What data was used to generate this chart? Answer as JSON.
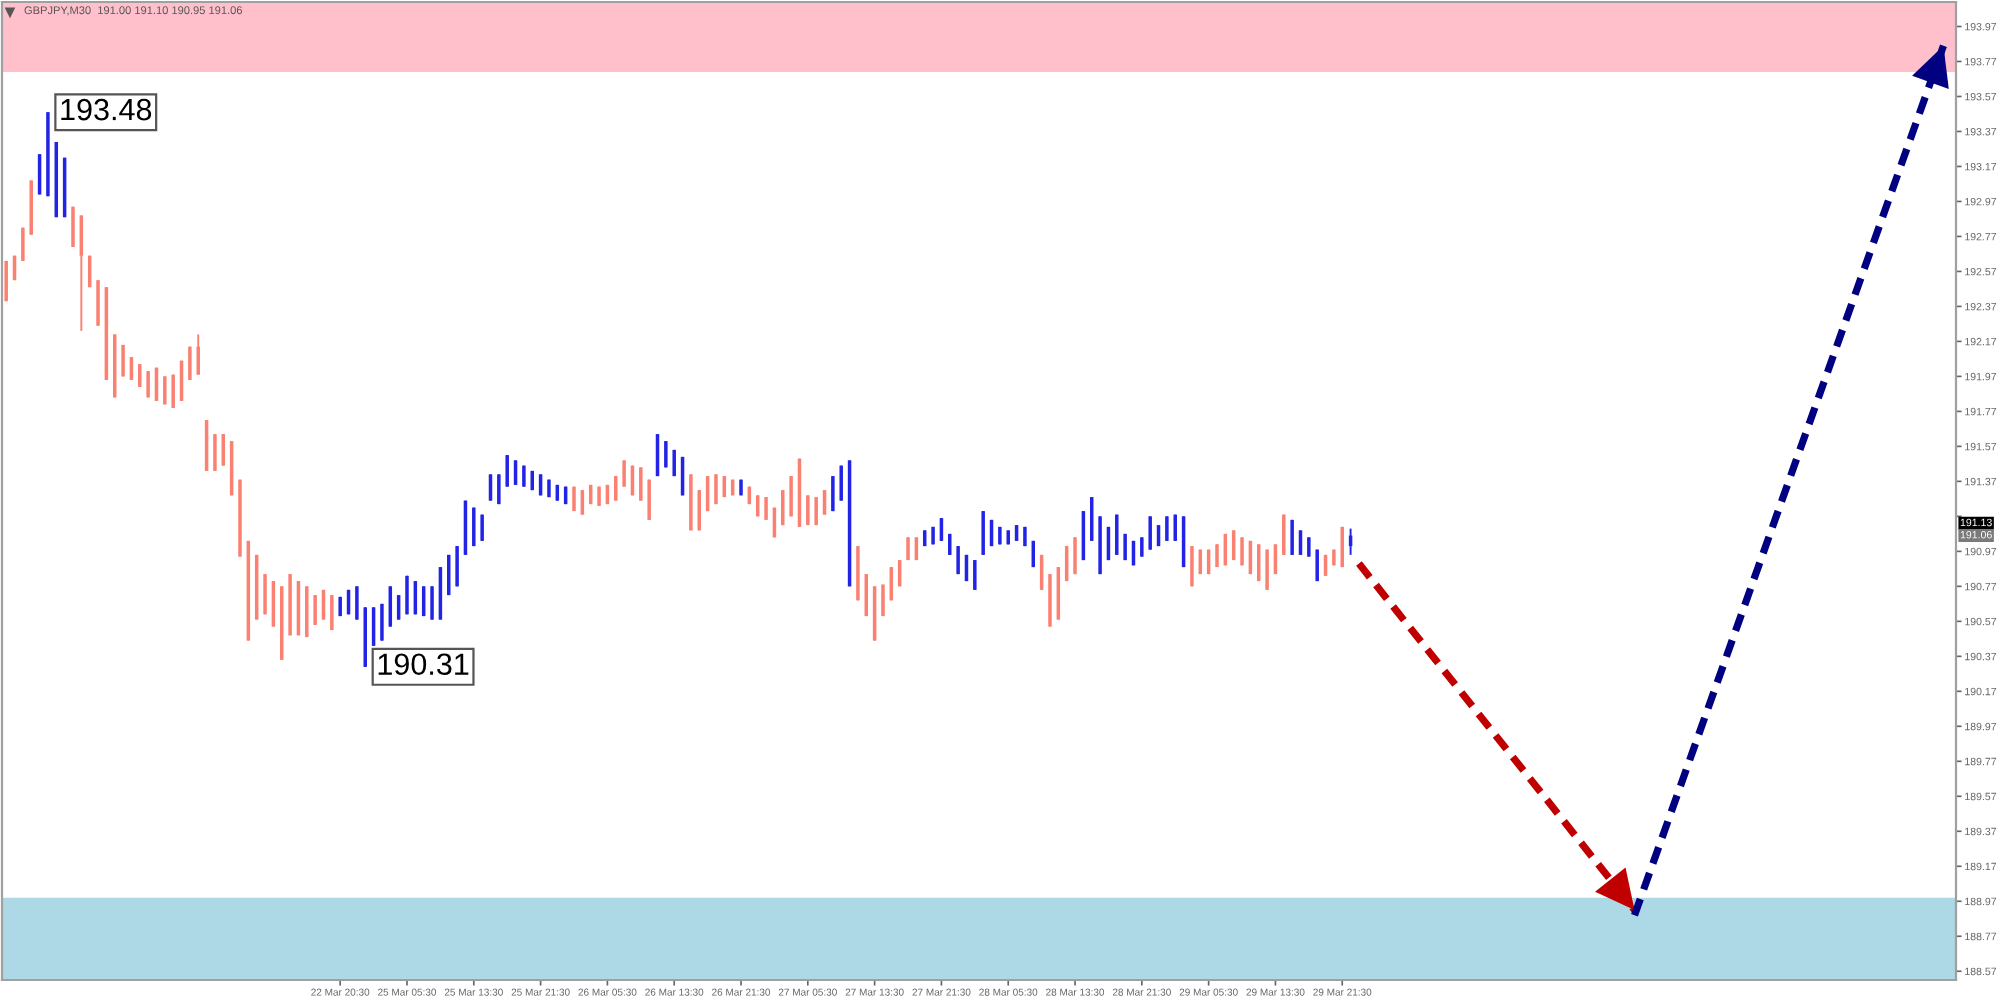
{
  "chart_data": {
    "type": "candlestick",
    "title": "GBPJPY,M30  191.00 191.10 190.95 191.06",
    "categories": [
      null,
      null,
      null,
      null,
      null,
      null,
      null,
      null,
      null,
      null,
      null,
      null,
      null,
      null,
      null,
      null,
      null,
      null,
      null,
      null,
      null,
      null,
      null,
      null,
      null,
      null,
      null,
      null,
      null,
      null,
      null,
      null,
      null,
      null,
      null,
      null,
      null,
      null,
      null,
      null,
      "22 Mar 20:30",
      null,
      null,
      null,
      null,
      null,
      null,
      null,
      "25 Mar 05:30",
      null,
      null,
      null,
      null,
      null,
      null,
      null,
      "25 Mar 13:30",
      null,
      null,
      null,
      null,
      null,
      null,
      null,
      "25 Mar 21:30",
      null,
      null,
      null,
      null,
      null,
      null,
      null,
      "26 Mar 05:30",
      null,
      null,
      null,
      null,
      null,
      null,
      null,
      "26 Mar 13:30",
      null,
      null,
      null,
      null,
      null,
      null,
      null,
      "26 Mar 21:30",
      null,
      null,
      null,
      null,
      null,
      null,
      null,
      "27 Mar 05:30",
      null,
      null,
      null,
      null,
      null,
      null,
      null,
      "27 Mar 13:30",
      null,
      null,
      null,
      null,
      null,
      null,
      null,
      "27 Mar 21:30",
      null,
      null,
      null,
      null,
      null,
      null,
      null,
      "28 Mar 05:30",
      null,
      null,
      null,
      null,
      null,
      null,
      null,
      "28 Mar 13:30",
      null,
      null,
      null,
      null,
      null,
      null,
      null,
      "28 Mar 21:30",
      null,
      null,
      null,
      null,
      null,
      null,
      null,
      "29 Mar 05:30",
      null,
      null,
      null,
      null,
      null,
      null,
      null,
      "29 Mar 13:30",
      null,
      null,
      null,
      null,
      null,
      null,
      null,
      "29 Mar 21:30",
      null,
      null,
      null,
      null,
      null,
      null,
      null,
      null,
      null,
      null,
      null,
      null,
      null,
      null,
      null,
      null,
      null,
      null,
      null,
      null,
      null,
      null,
      null,
      null,
      null,
      null,
      null,
      null,
      null,
      null,
      null,
      null,
      null,
      null,
      null,
      null,
      null,
      null,
      null,
      null,
      null,
      null,
      null,
      null,
      null,
      null,
      null,
      null,
      null,
      null,
      null,
      null,
      null,
      null,
      null,
      null,
      null,
      null,
      null,
      null,
      null,
      null,
      null,
      null,
      null,
      null,
      null,
      null,
      null,
      null,
      null,
      null,
      null
    ],
    "ohlc": [
      [
        192.63,
        192.63,
        192.4,
        192.4
      ],
      [
        192.66,
        192.66,
        192.52,
        192.52
      ],
      [
        192.82,
        192.82,
        192.63,
        192.63
      ],
      [
        193.09,
        193.09,
        192.78,
        192.78
      ],
      [
        193.01,
        193.24,
        193.01,
        193.24
      ],
      [
        193.0,
        193.48,
        193.0,
        193.48
      ],
      [
        192.88,
        193.31,
        192.88,
        193.31
      ],
      [
        192.88,
        193.22,
        192.88,
        193.22
      ],
      [
        192.94,
        192.94,
        192.71,
        192.71
      ],
      [
        192.89,
        192.89,
        192.23,
        192.66
      ],
      [
        192.66,
        192.66,
        192.48,
        192.48
      ],
      [
        192.52,
        192.52,
        192.26,
        192.26
      ],
      [
        192.48,
        192.48,
        191.95,
        191.95
      ],
      [
        192.21,
        192.21,
        191.85,
        191.85
      ],
      [
        192.15,
        192.15,
        191.97,
        191.97
      ],
      [
        192.08,
        192.08,
        191.95,
        191.95
      ],
      [
        192.04,
        192.04,
        191.91,
        191.91
      ],
      [
        192.0,
        192.0,
        191.85,
        191.85
      ],
      [
        192.02,
        192.02,
        191.83,
        191.83
      ],
      [
        191.97,
        191.97,
        191.81,
        191.81
      ],
      [
        191.98,
        191.98,
        191.79,
        191.79
      ],
      [
        192.06,
        192.06,
        191.83,
        191.83
      ],
      [
        192.14,
        192.14,
        191.95,
        191.95
      ],
      [
        192.14,
        192.21,
        191.98,
        191.98
      ],
      [
        191.72,
        191.72,
        191.43,
        191.43
      ],
      [
        191.64,
        191.64,
        191.43,
        191.43
      ],
      [
        191.64,
        191.64,
        191.46,
        191.46
      ],
      [
        191.6,
        191.6,
        191.29,
        191.29
      ],
      [
        191.38,
        191.38,
        190.94,
        190.94
      ],
      [
        191.03,
        191.03,
        190.46,
        190.46
      ],
      [
        190.95,
        190.95,
        190.58,
        190.58
      ],
      [
        190.84,
        190.84,
        190.61,
        190.61
      ],
      [
        190.8,
        190.8,
        190.54,
        190.54
      ],
      [
        190.77,
        190.77,
        190.35,
        190.35
      ],
      [
        190.84,
        190.84,
        190.49,
        190.49
      ],
      [
        190.8,
        190.8,
        190.49,
        190.49
      ],
      [
        190.77,
        190.77,
        190.48,
        190.48
      ],
      [
        190.72,
        190.72,
        190.55,
        190.55
      ],
      [
        190.75,
        190.75,
        190.58,
        190.58
      ],
      [
        190.72,
        190.72,
        190.52,
        190.52
      ],
      [
        190.6,
        190.71,
        190.6,
        190.71
      ],
      [
        190.61,
        190.75,
        190.61,
        190.75
      ],
      [
        190.58,
        190.77,
        190.58,
        190.77
      ],
      [
        190.31,
        190.65,
        190.31,
        190.65
      ],
      [
        190.43,
        190.65,
        190.43,
        190.65
      ],
      [
        190.46,
        190.67,
        190.46,
        190.67
      ],
      [
        190.54,
        190.77,
        190.54,
        190.77
      ],
      [
        190.58,
        190.72,
        190.58,
        190.72
      ],
      [
        190.61,
        190.83,
        190.61,
        190.83
      ],
      [
        190.61,
        190.8,
        190.61,
        190.8
      ],
      [
        190.6,
        190.77,
        190.6,
        190.77
      ],
      [
        190.58,
        190.77,
        190.58,
        190.77
      ],
      [
        190.58,
        190.88,
        190.58,
        190.88
      ],
      [
        190.72,
        190.95,
        190.72,
        190.95
      ],
      [
        190.77,
        191.0,
        190.77,
        191.0
      ],
      [
        190.95,
        191.26,
        190.95,
        191.26
      ],
      [
        191.0,
        191.22,
        191.0,
        191.22
      ],
      [
        191.03,
        191.18,
        191.03,
        191.18
      ],
      [
        191.26,
        191.41,
        191.26,
        191.41
      ],
      [
        191.24,
        191.41,
        191.24,
        191.41
      ],
      [
        191.34,
        191.52,
        191.34,
        191.52
      ],
      [
        191.35,
        191.49,
        191.35,
        191.49
      ],
      [
        191.34,
        191.46,
        191.34,
        191.46
      ],
      [
        191.32,
        191.43,
        191.32,
        191.43
      ],
      [
        191.29,
        191.41,
        191.29,
        191.41
      ],
      [
        191.28,
        191.38,
        191.28,
        191.38
      ],
      [
        191.26,
        191.35,
        191.26,
        191.35
      ],
      [
        191.24,
        191.34,
        191.24,
        191.34
      ],
      [
        191.34,
        191.34,
        191.2,
        191.2
      ],
      [
        191.32,
        191.32,
        191.18,
        191.18
      ],
      [
        191.35,
        191.35,
        191.24,
        191.24
      ],
      [
        191.34,
        191.34,
        191.23,
        191.23
      ],
      [
        191.35,
        191.35,
        191.24,
        191.24
      ],
      [
        191.4,
        191.4,
        191.26,
        191.26
      ],
      [
        191.49,
        191.49,
        191.34,
        191.34
      ],
      [
        191.46,
        191.46,
        191.29,
        191.29
      ],
      [
        191.45,
        191.45,
        191.26,
        191.26
      ],
      [
        191.38,
        191.38,
        191.15,
        191.15
      ],
      [
        191.4,
        191.64,
        191.4,
        191.64
      ],
      [
        191.45,
        191.6,
        191.45,
        191.6
      ],
      [
        191.4,
        191.55,
        191.4,
        191.55
      ],
      [
        191.29,
        191.51,
        191.29,
        191.51
      ],
      [
        191.41,
        191.41,
        191.09,
        191.09
      ],
      [
        191.32,
        191.32,
        191.09,
        191.09
      ],
      [
        191.4,
        191.4,
        191.2,
        191.2
      ],
      [
        191.41,
        191.41,
        191.24,
        191.24
      ],
      [
        191.4,
        191.4,
        191.28,
        191.28
      ],
      [
        191.38,
        191.38,
        191.29,
        191.29
      ],
      [
        191.29,
        191.38,
        191.29,
        191.38
      ],
      [
        191.34,
        191.34,
        191.24,
        191.24
      ],
      [
        191.29,
        191.29,
        191.17,
        191.17
      ],
      [
        191.28,
        191.28,
        191.15,
        191.15
      ],
      [
        191.22,
        191.22,
        191.05,
        191.05
      ],
      [
        191.32,
        191.32,
        191.12,
        191.12
      ],
      [
        191.4,
        191.4,
        191.17,
        191.17
      ],
      [
        191.5,
        191.5,
        191.11,
        191.11
      ],
      [
        191.29,
        191.29,
        191.12,
        191.12
      ],
      [
        191.28,
        191.28,
        191.12,
        191.12
      ],
      [
        191.32,
        191.32,
        191.18,
        191.18
      ],
      [
        191.2,
        191.4,
        191.2,
        191.4
      ],
      [
        191.26,
        191.46,
        191.26,
        191.46
      ],
      [
        190.77,
        191.49,
        190.77,
        191.49
      ],
      [
        191.0,
        191.0,
        190.69,
        190.69
      ],
      [
        190.84,
        190.84,
        190.6,
        190.6
      ],
      [
        190.77,
        190.77,
        190.46,
        190.46
      ],
      [
        190.78,
        190.78,
        190.6,
        190.6
      ],
      [
        190.88,
        190.88,
        190.69,
        190.69
      ],
      [
        190.92,
        190.92,
        190.77,
        190.77
      ],
      [
        191.05,
        191.05,
        190.92,
        190.92
      ],
      [
        191.05,
        191.05,
        190.92,
        190.92
      ],
      [
        191.0,
        191.09,
        191.0,
        191.09
      ],
      [
        191.01,
        191.11,
        191.01,
        191.11
      ],
      [
        191.03,
        191.16,
        191.03,
        191.16
      ],
      [
        190.95,
        191.07,
        190.95,
        191.07
      ],
      [
        190.84,
        191.0,
        190.84,
        191.0
      ],
      [
        190.8,
        190.95,
        190.8,
        190.95
      ],
      [
        190.75,
        190.92,
        190.75,
        190.92
      ],
      [
        190.95,
        191.2,
        190.95,
        191.2
      ],
      [
        191.0,
        191.15,
        191.0,
        191.15
      ],
      [
        191.01,
        191.11,
        191.01,
        191.11
      ],
      [
        191.01,
        191.09,
        191.01,
        191.09
      ],
      [
        191.03,
        191.12,
        191.03,
        191.12
      ],
      [
        191.0,
        191.11,
        191.0,
        191.11
      ],
      [
        190.88,
        191.03,
        190.88,
        191.03
      ],
      [
        190.95,
        190.95,
        190.75,
        190.75
      ],
      [
        190.84,
        190.84,
        190.54,
        190.54
      ],
      [
        190.88,
        190.88,
        190.58,
        190.58
      ],
      [
        191.0,
        191.0,
        190.8,
        190.8
      ],
      [
        191.05,
        191.05,
        190.84,
        190.84
      ],
      [
        190.92,
        191.2,
        190.92,
        191.2
      ],
      [
        191.03,
        191.28,
        191.03,
        191.28
      ],
      [
        190.84,
        191.17,
        190.84,
        191.17
      ],
      [
        190.92,
        191.11,
        190.92,
        191.11
      ],
      [
        190.95,
        191.18,
        190.95,
        191.18
      ],
      [
        190.92,
        191.07,
        190.92,
        191.07
      ],
      [
        190.89,
        191.03,
        190.89,
        191.03
      ],
      [
        190.94,
        191.05,
        190.94,
        191.05
      ],
      [
        190.98,
        191.17,
        190.98,
        191.17
      ],
      [
        191.0,
        191.12,
        191.0,
        191.12
      ],
      [
        191.03,
        191.17,
        191.03,
        191.17
      ],
      [
        191.03,
        191.18,
        191.03,
        191.18
      ],
      [
        190.88,
        191.17,
        190.88,
        191.17
      ],
      [
        191.0,
        191.0,
        190.77,
        190.77
      ],
      [
        190.98,
        190.98,
        190.84,
        190.84
      ],
      [
        190.98,
        190.98,
        190.84,
        190.84
      ],
      [
        191.01,
        191.01,
        190.88,
        190.88
      ],
      [
        191.07,
        191.07,
        190.89,
        190.89
      ],
      [
        191.09,
        191.09,
        190.92,
        190.92
      ],
      [
        191.05,
        191.05,
        190.89,
        190.89
      ],
      [
        191.03,
        191.03,
        190.84,
        190.84
      ],
      [
        191.01,
        191.01,
        190.8,
        190.8
      ],
      [
        190.98,
        190.98,
        190.75,
        190.75
      ],
      [
        191.01,
        191.01,
        190.84,
        190.84
      ],
      [
        191.18,
        191.18,
        190.95,
        190.95
      ],
      [
        190.95,
        191.15,
        190.95,
        191.15
      ],
      [
        190.95,
        191.09,
        190.95,
        191.09
      ],
      [
        190.94,
        191.05,
        190.94,
        191.05
      ],
      [
        190.8,
        190.98,
        190.8,
        190.98
      ],
      [
        190.95,
        190.95,
        190.83,
        190.83
      ],
      [
        190.98,
        190.98,
        190.89,
        190.89
      ],
      [
        191.11,
        191.11,
        190.88,
        190.88
      ],
      [
        191.0,
        191.1,
        190.95,
        191.06
      ],
      null,
      null,
      null,
      null,
      null,
      null,
      null,
      null,
      null,
      null,
      null,
      null,
      null,
      null,
      null,
      null,
      null,
      null,
      null,
      null,
      null,
      null,
      null,
      null,
      null,
      null,
      null,
      null,
      null,
      null,
      null,
      null,
      null,
      null,
      null,
      null,
      null,
      null,
      null,
      null,
      null,
      null,
      null,
      null,
      null,
      null,
      null,
      null,
      null,
      null,
      null,
      null,
      null,
      null,
      null,
      null,
      null,
      null,
      null,
      null,
      null,
      null,
      null,
      null,
      null,
      null,
      null,
      null,
      null,
      null,
      null,
      null
    ],
    "colors": [
      "#fa8072",
      "#fa8072",
      "#fa8072",
      "#fa8072",
      "#2323e6",
      "#2323e6",
      "#2323e6",
      "#2323e6",
      "#fa8072",
      "#fa8072",
      "#fa8072",
      "#fa8072",
      "#fa8072",
      "#fa8072",
      "#fa8072",
      "#fa8072",
      "#fa8072",
      "#fa8072",
      "#fa8072",
      "#fa8072",
      "#fa8072",
      "#fa8072",
      "#fa8072",
      "#fa8072",
      "#fa8072",
      "#fa8072",
      "#fa8072",
      "#fa8072",
      "#fa8072",
      "#fa8072",
      "#fa8072",
      "#fa8072",
      "#fa8072",
      "#fa8072",
      "#fa8072",
      "#fa8072",
      "#fa8072",
      "#fa8072",
      "#fa8072",
      "#fa8072",
      "#2323e6",
      "#2323e6",
      "#2323e6",
      "#2323e6",
      "#2323e6",
      "#2323e6",
      "#2323e6",
      "#2323e6",
      "#2323e6",
      "#2323e6",
      "#2323e6",
      "#2323e6",
      "#2323e6",
      "#2323e6",
      "#2323e6",
      "#2323e6",
      "#2323e6",
      "#2323e6",
      "#2323e6",
      "#2323e6",
      "#2323e6",
      "#2323e6",
      "#2323e6",
      "#2323e6",
      "#2323e6",
      "#2323e6",
      "#2323e6",
      "#2323e6",
      "#fa8072",
      "#fa8072",
      "#fa8072",
      "#fa8072",
      "#fa8072",
      "#fa8072",
      "#fa8072",
      "#fa8072",
      "#fa8072",
      "#fa8072",
      "#2323e6",
      "#2323e6",
      "#2323e6",
      "#2323e6",
      "#fa8072",
      "#fa8072",
      "#fa8072",
      "#fa8072",
      "#fa8072",
      "#fa8072",
      "#2323e6",
      "#fa8072",
      "#fa8072",
      "#fa8072",
      "#fa8072",
      "#fa8072",
      "#fa8072",
      "#fa8072",
      "#fa8072",
      "#fa8072",
      "#fa8072",
      "#2323e6",
      "#2323e6",
      "#2323e6",
      "#fa8072",
      "#fa8072",
      "#fa8072",
      "#fa8072",
      "#fa8072",
      "#fa8072",
      "#fa8072",
      "#fa8072",
      "#2323e6",
      "#2323e6",
      "#2323e6",
      "#2323e6",
      "#2323e6",
      "#2323e6",
      "#2323e6",
      "#2323e6",
      "#2323e6",
      "#2323e6",
      "#2323e6",
      "#2323e6",
      "#2323e6",
      "#2323e6",
      "#fa8072",
      "#fa8072",
      "#fa8072",
      "#fa8072",
      "#fa8072",
      "#2323e6",
      "#2323e6",
      "#2323e6",
      "#2323e6",
      "#2323e6",
      "#2323e6",
      "#2323e6",
      "#2323e6",
      "#2323e6",
      "#2323e6",
      "#2323e6",
      "#2323e6",
      "#2323e6",
      "#fa8072",
      "#fa8072",
      "#fa8072",
      "#fa8072",
      "#fa8072",
      "#fa8072",
      "#fa8072",
      "#fa8072",
      "#fa8072",
      "#fa8072",
      "#fa8072",
      "#fa8072",
      "#2323e6",
      "#2323e6",
      "#2323e6",
      "#2323e6",
      "#fa8072",
      "#fa8072",
      "#fa8072",
      "#2323e6",
      null,
      null,
      null,
      null,
      null,
      null,
      null,
      null,
      null,
      null,
      null,
      null,
      null,
      null,
      null,
      null,
      null,
      null,
      null,
      null,
      null,
      null,
      null,
      null,
      null,
      null,
      null,
      null,
      null,
      null,
      null,
      null,
      null,
      null,
      null,
      null,
      null,
      null,
      null,
      null,
      null,
      null,
      null,
      null,
      null,
      null,
      null,
      null,
      null,
      null,
      null,
      null,
      null,
      null,
      null,
      null,
      null,
      null,
      null,
      null,
      null,
      null,
      null,
      null,
      null,
      null,
      null,
      null,
      null,
      null,
      null,
      null
    ],
    "series": [
      {
        "type": "line",
        "color": "#c00000",
        "line_style": "dashed",
        "values": [
          null,
          null,
          null,
          null,
          null,
          null,
          null,
          null,
          null,
          null,
          null,
          null,
          null,
          null,
          null,
          null,
          null,
          null,
          null,
          null,
          null,
          null,
          null,
          null,
          null,
          null,
          null,
          null,
          null,
          null,
          null,
          null,
          null,
          null,
          null,
          null,
          null,
          null,
          null,
          null,
          null,
          null,
          null,
          null,
          null,
          null,
          null,
          null,
          null,
          null,
          null,
          null,
          null,
          null,
          null,
          null,
          null,
          null,
          null,
          null,
          null,
          null,
          null,
          null,
          null,
          null,
          null,
          null,
          null,
          null,
          null,
          null,
          null,
          null,
          null,
          null,
          null,
          null,
          null,
          null,
          null,
          null,
          null,
          null,
          null,
          null,
          null,
          null,
          null,
          null,
          null,
          null,
          null,
          null,
          null,
          null,
          null,
          null,
          null,
          null,
          null,
          null,
          null,
          null,
          null,
          null,
          null,
          null,
          null,
          null,
          null,
          null,
          null,
          null,
          null,
          null,
          null,
          null,
          null,
          null,
          null,
          null,
          null,
          null,
          null,
          null,
          null,
          null,
          null,
          null,
          null,
          null,
          null,
          null,
          null,
          null,
          null,
          null,
          null,
          null,
          null,
          null,
          null,
          null,
          null,
          null,
          null,
          null,
          null,
          null,
          null,
          null,
          null,
          null,
          null,
          null,
          null,
          null,
          null,
          null,
          null,
          null,
          190.9,
          null,
          null,
          null,
          null,
          null,
          null,
          null,
          null,
          null,
          null,
          null,
          null,
          null,
          null,
          null,
          null,
          null,
          null,
          null,
          null,
          null,
          null,
          null,
          null,
          null,
          null,
          null,
          null,
          null,
          null,
          null,
          null,
          188.92,
          null,
          null,
          null,
          null,
          null,
          null,
          null,
          null,
          null,
          null,
          null,
          null,
          null,
          null,
          null,
          null,
          null,
          null,
          null,
          null,
          null,
          null,
          null,
          null,
          null,
          null,
          null,
          null,
          null,
          null,
          null,
          null,
          null,
          null,
          null,
          null,
          null,
          null
        ]
      },
      {
        "type": "line",
        "color": "#000080",
        "line_style": "dashed",
        "values": [
          null,
          null,
          null,
          null,
          null,
          null,
          null,
          null,
          null,
          null,
          null,
          null,
          null,
          null,
          null,
          null,
          null,
          null,
          null,
          null,
          null,
          null,
          null,
          null,
          null,
          null,
          null,
          null,
          null,
          null,
          null,
          null,
          null,
          null,
          null,
          null,
          null,
          null,
          null,
          null,
          null,
          null,
          null,
          null,
          null,
          null,
          null,
          null,
          null,
          null,
          null,
          null,
          null,
          null,
          null,
          null,
          null,
          null,
          null,
          null,
          null,
          null,
          null,
          null,
          null,
          null,
          null,
          null,
          null,
          null,
          null,
          null,
          null,
          null,
          null,
          null,
          null,
          null,
          null,
          null,
          null,
          null,
          null,
          null,
          null,
          null,
          null,
          null,
          null,
          null,
          null,
          null,
          null,
          null,
          null,
          null,
          null,
          null,
          null,
          null,
          null,
          null,
          null,
          null,
          null,
          null,
          null,
          null,
          null,
          null,
          null,
          null,
          null,
          null,
          null,
          null,
          null,
          null,
          null,
          null,
          null,
          null,
          null,
          null,
          null,
          null,
          null,
          null,
          null,
          null,
          null,
          null,
          null,
          null,
          null,
          null,
          null,
          null,
          null,
          null,
          null,
          null,
          null,
          null,
          null,
          null,
          null,
          null,
          null,
          null,
          null,
          null,
          null,
          null,
          null,
          null,
          null,
          null,
          null,
          null,
          null,
          null,
          null,
          null,
          null,
          null,
          null,
          null,
          null,
          null,
          null,
          null,
          null,
          null,
          null,
          null,
          null,
          null,
          null,
          null,
          null,
          null,
          null,
          null,
          null,
          null,
          null,
          null,
          null,
          null,
          null,
          null,
          null,
          null,
          null,
          188.89,
          null,
          null,
          null,
          null,
          null,
          null,
          null,
          null,
          null,
          null,
          null,
          null,
          null,
          null,
          null,
          null,
          null,
          null,
          null,
          null,
          null,
          null,
          null,
          null,
          null,
          null,
          null,
          null,
          null,
          null,
          null,
          null,
          null,
          null,
          null,
          null,
          193.86,
          null
        ]
      }
    ],
    "ylim": [
      188.52,
      194.11
    ],
    "yticks": [
      188.57,
      188.77,
      188.97,
      189.17,
      189.37,
      189.57,
      189.77,
      189.97,
      190.17,
      190.37,
      190.57,
      190.77,
      190.97,
      {
        "value": 191.17,
        "label": null
      },
      191.37,
      191.57,
      191.77,
      191.97,
      192.17,
      192.37,
      192.57,
      192.77,
      192.97,
      193.17,
      193.37,
      193.57,
      193.77,
      193.97
    ],
    "bands": [
      {
        "axis": "y",
        "from": 193.71,
        "to": 194.11,
        "color": "#ffc0cb"
      },
      {
        "axis": "y",
        "from": 188.52,
        "to": 188.99,
        "color": "#add8e6"
      }
    ],
    "annotations": [
      "193.48",
      "190.31",
      {
        "text": "191.13",
        "y": 191.13
      },
      {
        "text": "191.06",
        "y": 191.06
      }
    ]
  }
}
